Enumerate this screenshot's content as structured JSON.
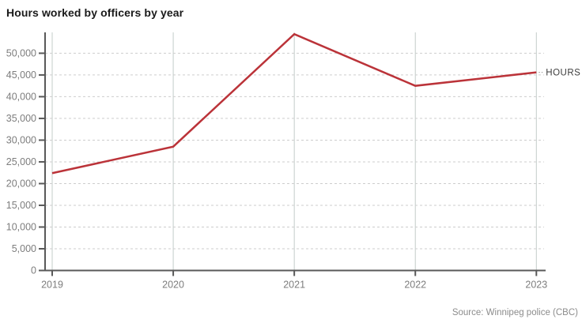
{
  "header": {
    "title": "Hours worked by officers by year"
  },
  "chart_data": {
    "type": "line",
    "title": "Hours worked by officers by year",
    "categories": [
      "2019",
      "2020",
      "2021",
      "2022",
      "2023"
    ],
    "series": [
      {
        "name": "HOURS",
        "values": [
          22400,
          28500,
          54400,
          42500,
          45600
        ]
      }
    ],
    "xlabel": "",
    "ylabel": "",
    "ylim": [
      0,
      54800
    ],
    "ytick_values": [
      0,
      5000,
      10000,
      15000,
      20000,
      25000,
      30000,
      35000,
      40000,
      45000,
      50000
    ],
    "ytick_labels": [
      "0",
      "5,000",
      "10,000",
      "15,000",
      "20,000",
      "25,000",
      "30,000",
      "35,000",
      "40,000",
      "45,000",
      "50,000"
    ],
    "grid": {
      "horizontal": "dashed",
      "vertical": "solid"
    },
    "legend_position": "right-of-last-point",
    "line_label": "HOURS",
    "colors": {
      "line": "#bb3339",
      "axis": "#595959",
      "grid_horizontal": "#cdcdcd",
      "grid_vertical": "#c3ccca",
      "tick_label": "#7d7d7d",
      "series_label": "#3d3d3d",
      "leader": "#9a9a9a"
    }
  },
  "footer": {
    "source": "Source: Winnipeg police (CBC)"
  }
}
